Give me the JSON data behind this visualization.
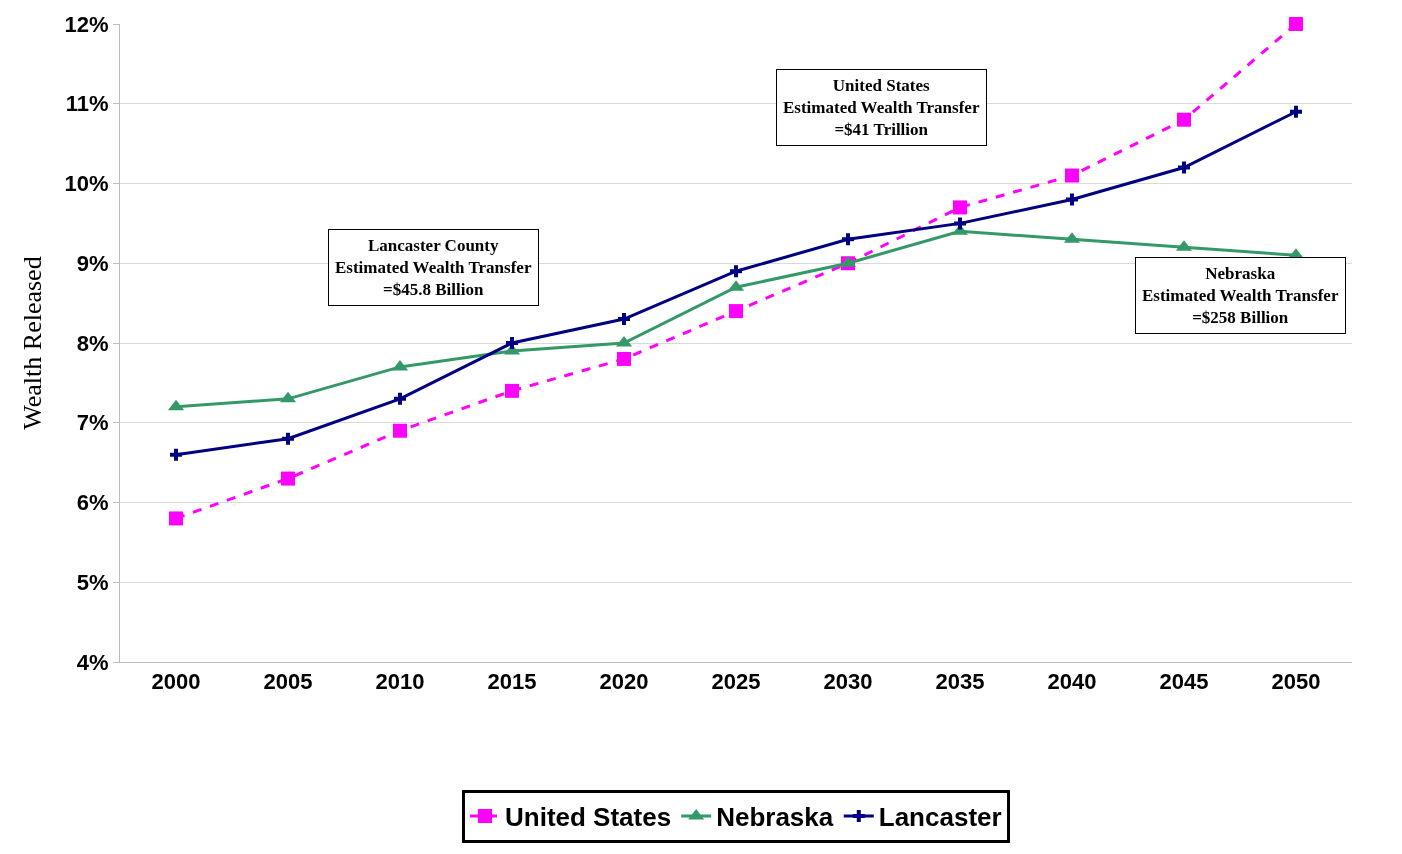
{
  "chart_data": {
    "type": "line",
    "ylabel": "Wealth Released",
    "categories": [
      "2000",
      "2005",
      "2010",
      "2015",
      "2020",
      "2025",
      "2030",
      "2035",
      "2040",
      "2045",
      "2050"
    ],
    "series": [
      {
        "name": "United States",
        "color": "#ff00ff",
        "marker": "square",
        "line_style": "dashed",
        "values": [
          5.8,
          6.3,
          6.9,
          7.4,
          7.8,
          8.4,
          9.0,
          9.7,
          10.1,
          10.8,
          12.0
        ]
      },
      {
        "name": "Nebraska",
        "color": "#339966",
        "marker": "triangle",
        "line_style": "solid",
        "values": [
          7.2,
          7.3,
          7.7,
          7.9,
          8.0,
          8.7,
          9.0,
          9.4,
          9.3,
          9.2,
          9.1
        ]
      },
      {
        "name": "Lancaster",
        "color": "#000080",
        "marker": "cross",
        "line_style": "solid",
        "values": [
          6.6,
          6.8,
          7.3,
          8.0,
          8.3,
          8.9,
          9.3,
          9.5,
          9.8,
          10.2,
          10.9
        ]
      }
    ],
    "ylim": [
      4,
      12
    ],
    "yticks": [
      {
        "value": 4,
        "label": "4%"
      },
      {
        "value": 5,
        "label": "5%"
      },
      {
        "value": 6,
        "label": "6%"
      },
      {
        "value": 7,
        "label": "7%"
      },
      {
        "value": 8,
        "label": "8%"
      },
      {
        "value": 9,
        "label": "9%"
      },
      {
        "value": 10,
        "label": "10%"
      },
      {
        "value": 11,
        "label": "11%"
      },
      {
        "value": 12,
        "label": "12%"
      }
    ],
    "grid": "y",
    "legend": "bottom",
    "annotations": [
      "Lancaster County\nEstimated Wealth Transfer\n=$45.8 Billion",
      "United States\nEstimated Wealth Transfer\n=$41 Trillion",
      "Nebraska\nEstimated Wealth Transfer\n=$258 Billion"
    ]
  }
}
